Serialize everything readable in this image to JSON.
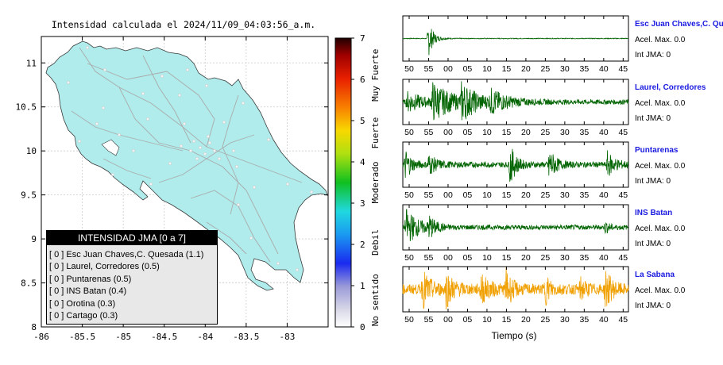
{
  "map": {
    "title": "Intensidad calculada el 2024/11/09_04:03:56_a.m.",
    "x_ticks": [
      "-86",
      "-85.5",
      "-85",
      "-84.5",
      "-84",
      "-83.5",
      "-83"
    ],
    "y_ticks": [
      "11",
      "10.5",
      "10",
      "9.5",
      "9",
      "8.5",
      "8"
    ],
    "xlim": [
      -86,
      -82.5
    ],
    "ylim": [
      8,
      11.3
    ]
  },
  "colorbar": {
    "ticks": [
      "0",
      "1",
      "2",
      "3",
      "4",
      "5",
      "6",
      "7"
    ],
    "range": [
      0,
      7
    ],
    "category_labels": [
      "No sentido",
      "Debil",
      "Moderado",
      "Fuerte",
      "Muy Fuerte"
    ]
  },
  "legend": {
    "header": "INTENSIDAD JMA [0 a 7]",
    "rows": [
      "[ 0 ]  Esc Juan Chaves,C. Quesada (1.1)",
      "[ 0 ]  Laurel, Corredores (0.5)",
      "[ 0 ]  Puntarenas (0.5)",
      "[ 0 ]  INS Batan (0.4)",
      "[ 0 ]  Orotina (0.3)",
      "[ 0 ]  Cartago (0.3)"
    ]
  },
  "waveforms": {
    "time_ticks": [
      "50",
      "55",
      "00",
      "05",
      "10",
      "15",
      "20",
      "25",
      "30",
      "35",
      "40",
      "45"
    ],
    "xlabel": "Tiempo (s)",
    "stations": [
      {
        "name": "Esc Juan Chaves,C. Qu",
        "accel": "Acel. Max. 0.0",
        "int": "Int JMA: 0",
        "color": "#006400"
      },
      {
        "name": "Laurel, Corredores",
        "accel": "Acel. Max. 0.0",
        "int": "Int JMA: 0",
        "color": "#006400"
      },
      {
        "name": "Puntarenas",
        "accel": "Acel. Max. 0.0",
        "int": "Int JMA: 0",
        "color": "#006400"
      },
      {
        "name": "INS Batan",
        "accel": "Acel. Max. 0.0",
        "int": "Int JMA: 0",
        "color": "#006400"
      },
      {
        "name": "La Sabana",
        "accel": "Acel. Max. 0.0",
        "int": "Int JMA: 0",
        "color": "#f0a000"
      }
    ]
  },
  "chart_data": {
    "type": "map",
    "title": "Intensidad calculada el 2024/11/09_04:03:56_a.m.",
    "xlim": [
      -86,
      -82.5
    ],
    "ylim": [
      8,
      11.3
    ],
    "colorbar_range": [
      0,
      7
    ],
    "stations": [
      {
        "name": "Esc Juan Chaves,C. Quesada",
        "intensity": 1.1
      },
      {
        "name": "Laurel, Corredores",
        "intensity": 0.5
      },
      {
        "name": "Puntarenas",
        "intensity": 0.5
      },
      {
        "name": "INS Batan",
        "intensity": 0.4
      },
      {
        "name": "Orotina",
        "intensity": 0.3
      },
      {
        "name": "Cartago",
        "intensity": 0.3
      }
    ]
  }
}
